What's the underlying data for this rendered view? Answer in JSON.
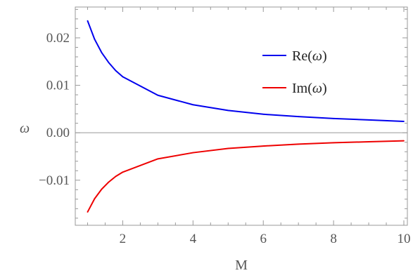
{
  "chart_data": {
    "type": "line",
    "title": "",
    "xlabel": "M",
    "ylabel": "ω",
    "xlim": [
      0.65,
      10.1
    ],
    "ylim": [
      -0.0195,
      0.0265
    ],
    "grid": false,
    "frame": true,
    "legend_position": "top-right",
    "x_ticks": [
      {
        "value": 2,
        "label": "2"
      },
      {
        "value": 4,
        "label": "4"
      },
      {
        "value": 6,
        "label": "6"
      },
      {
        "value": 8,
        "label": "8"
      },
      {
        "value": 10,
        "label": "10"
      }
    ],
    "y_ticks": [
      {
        "value": 0.02,
        "label": "0.02"
      },
      {
        "value": 0.01,
        "label": "0.01"
      },
      {
        "value": 0.0,
        "label": "0.00"
      },
      {
        "value": -0.01,
        "label": "-0.01"
      }
    ],
    "x_minor_step": 0.5,
    "y_minor_step": 0.002,
    "series": [
      {
        "name": "Re(ω)",
        "legend_prefix": "Re(",
        "legend_symbol": "ω",
        "legend_suffix": ")",
        "color": "#0000ee",
        "x": [
          1.0,
          1.2,
          1.4,
          1.6,
          1.8,
          2.0,
          3.0,
          4.0,
          5.0,
          6.0,
          7.0,
          8.0,
          9.0,
          10.0
        ],
        "y": [
          0.0236,
          0.0197,
          0.0169,
          0.0148,
          0.0131,
          0.0118,
          0.0079,
          0.0059,
          0.0047,
          0.0039,
          0.0034,
          0.003,
          0.0027,
          0.0024
        ]
      },
      {
        "name": "Im(ω)",
        "legend_prefix": "Im(",
        "legend_symbol": "ω",
        "legend_suffix": ")",
        "color": "#ee0000",
        "x": [
          1.0,
          1.2,
          1.4,
          1.6,
          1.8,
          2.0,
          3.0,
          4.0,
          5.0,
          6.0,
          7.0,
          8.0,
          9.0,
          10.0
        ],
        "y": [
          -0.0167,
          -0.0139,
          -0.0119,
          -0.0104,
          -0.0092,
          -0.0083,
          -0.0055,
          -0.0042,
          -0.0033,
          -0.0028,
          -0.0024,
          -0.0021,
          -0.0019,
          -0.0017
        ]
      }
    ]
  }
}
